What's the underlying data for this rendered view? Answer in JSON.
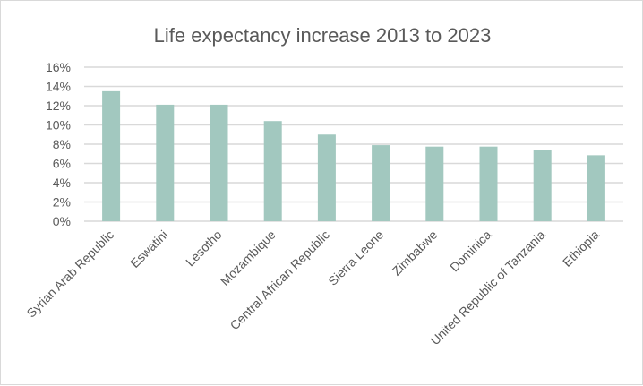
{
  "chart_data": {
    "type": "bar",
    "title": "Life expectancy increase 2013 to 2023",
    "xlabel": "",
    "ylabel": "",
    "categories": [
      "Syrian Arab Republic",
      "Eswatini",
      "Lesotho",
      "Mozambique",
      "Central African Republic",
      "Sierra Leone",
      "Zimbabwe",
      "Dominica",
      "United Republic of Tanzania",
      "Ethiopia"
    ],
    "values": [
      13.5,
      12.1,
      12.1,
      10.4,
      9.0,
      7.9,
      7.75,
      7.75,
      7.4,
      6.85
    ],
    "ylim": [
      0,
      16
    ],
    "yticks": [
      0,
      2,
      4,
      6,
      8,
      10,
      12,
      14,
      16
    ],
    "ytick_labels": [
      "0%",
      "2%",
      "4%",
      "6%",
      "8%",
      "10%",
      "12%",
      "14%",
      "16%"
    ],
    "grid": true,
    "legend": "none",
    "colors": {
      "bar": "#a2c8bf",
      "grid": "#d9d9d9",
      "text": "#595959"
    }
  }
}
